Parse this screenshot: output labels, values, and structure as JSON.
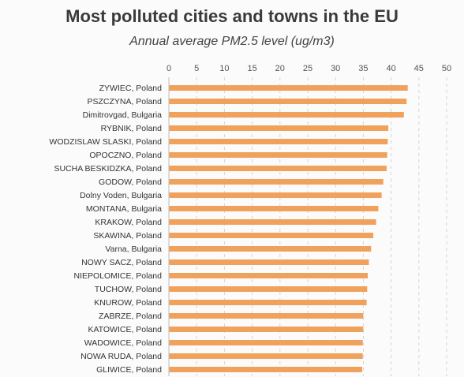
{
  "chart_data": {
    "type": "bar",
    "orientation": "horizontal",
    "title": "Most polluted cities and towns in the EU",
    "subtitle": "Annual average PM2.5 level (ug/m3)",
    "xlim": [
      0,
      50
    ],
    "xticks": [
      0,
      5,
      10,
      15,
      20,
      25,
      30,
      35,
      40,
      45,
      50
    ],
    "x_axis_position": "top",
    "grid": "vertical dashed",
    "bar_color": "#f0a15c",
    "categories": [
      "ZYWIEC, Poland",
      "PSZCZYNA, Poland",
      "Dimitrovgad, Bulgaria",
      "RYBNIK, Poland",
      "WODZISLAW SLASKI, Poland",
      "OPOCZNO, Poland",
      "SUCHA BESKIDZKA, Poland",
      "GODOW, Poland",
      "Dolny Voden, Bulgaria",
      "MONTANA, Bulgaria",
      "KRAKOW, Poland",
      "SKAWINA, Poland",
      "Varna, Bulgaria",
      "NOWY SACZ, Poland",
      "NIEPOLOMICE, Poland",
      "TUCHOW, Poland",
      "KNUROW, Poland",
      "ZABRZE, Poland",
      "KATOWICE, Poland",
      "WADOWICE, Poland",
      "NOWA RUDA, Poland",
      "GLIWICE, Poland"
    ],
    "values": [
      43,
      42.8,
      42.3,
      39.5,
      39.4,
      39.3,
      39.2,
      38.6,
      38.3,
      37.7,
      37.3,
      36.8,
      36.4,
      36,
      35.8,
      35.7,
      35.6,
      35,
      35,
      34.9,
      34.9,
      34.8
    ]
  }
}
